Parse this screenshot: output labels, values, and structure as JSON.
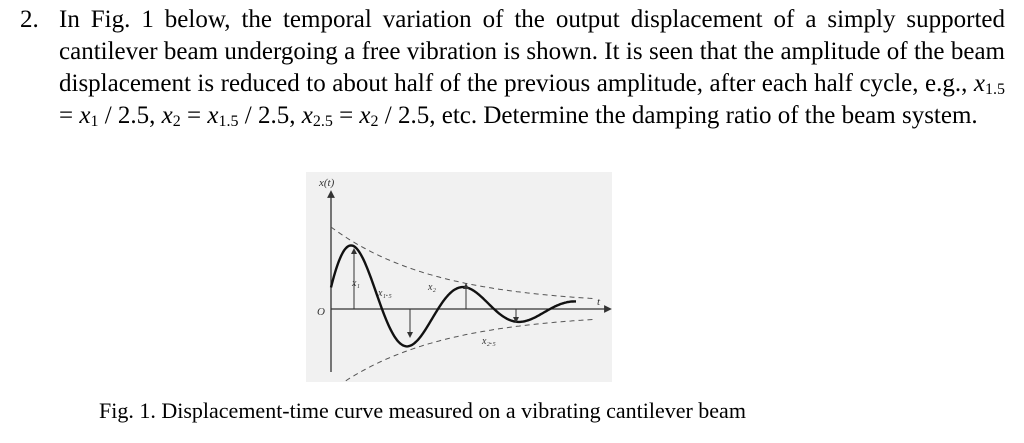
{
  "problem": {
    "number": "2.",
    "seg1": "In Fig. 1 below, the temporal variation of the output displacement of a simply supported cantilever beam undergoing a free vibration is shown. It is seen that the amplitude of the beam displacement is reduced to about half of the previous amplitude, after each half cycle, e.g., ",
    "eq1_var": "x",
    "eq1_sub": "1.5",
    "eq1_rhs_var": "x",
    "eq1_rhs_sub": "1",
    "eq1_div": " / 2.5, ",
    "eq2_var": "x",
    "eq2_sub": "2",
    "eq2_rhs_var": "x",
    "eq2_rhs_sub": "1.5",
    "eq2_div": " / 2.5, ",
    "eq3_var": "x",
    "eq3_sub": "2.5",
    "eq3_rhs_var": "x",
    "eq3_rhs_sub": "2",
    "eq3_div": " / 2.5, etc.",
    "equals": " = ",
    "seg2": " Determine the damping ratio of the beam system."
  },
  "figure": {
    "y_axis_label": "x(t)",
    "origin_label": "O",
    "t_axis_label": "t",
    "labels": {
      "x1": "x₁",
      "x1_5": "x₁.₅",
      "x2": "x₂",
      "x2_5": "x₂.₅"
    }
  },
  "caption": "Fig. 1. Displacement-time curve measured on a vibrating cantilever beam"
}
